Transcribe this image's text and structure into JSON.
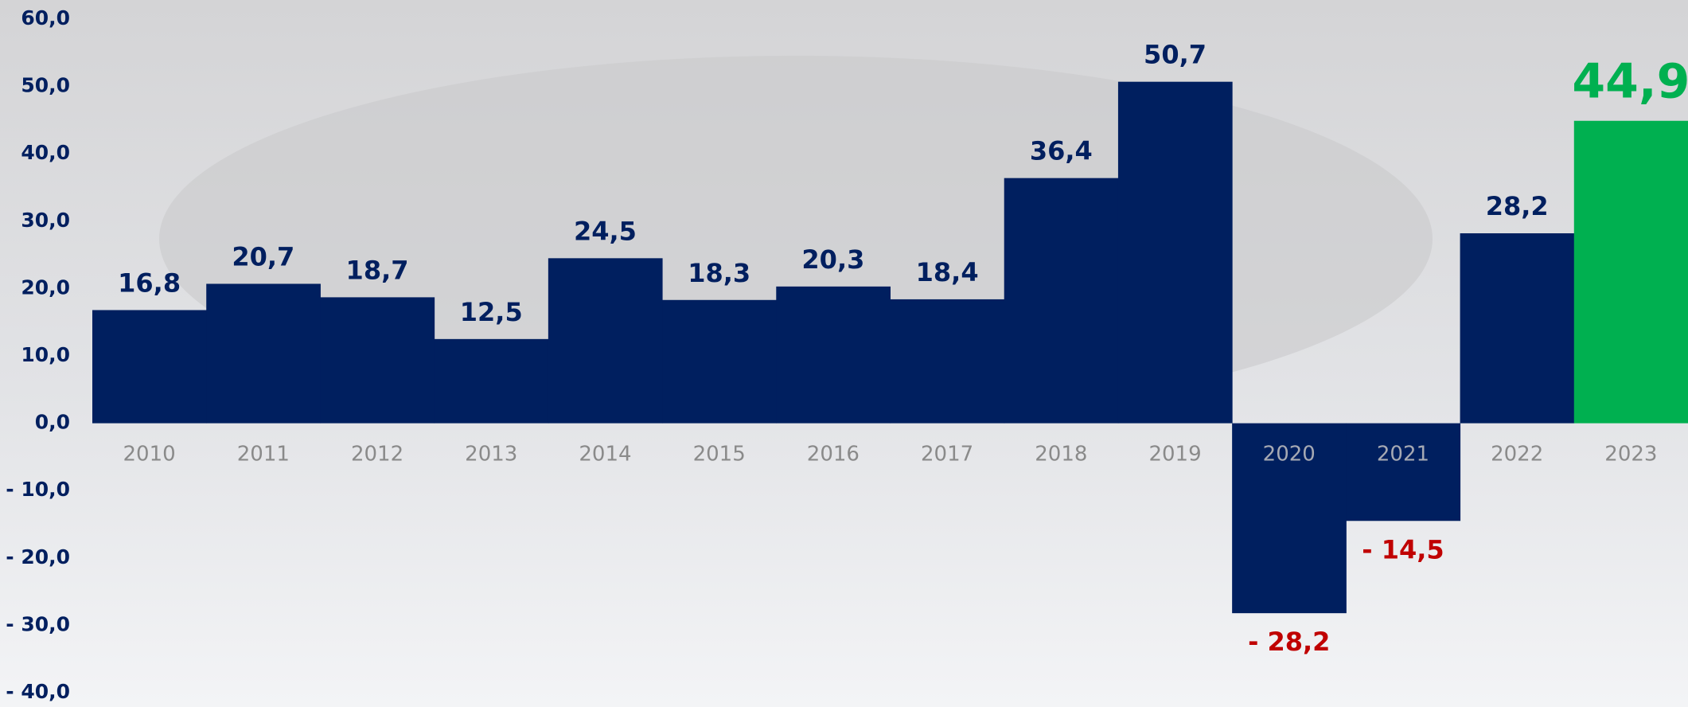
{
  "chart_data": {
    "type": "bar",
    "categories": [
      "2010",
      "2011",
      "2012",
      "2013",
      "2014",
      "2015",
      "2016",
      "2017",
      "2018",
      "2019",
      "2020",
      "2021",
      "2022",
      "2023"
    ],
    "values": [
      16.8,
      20.7,
      18.7,
      12.5,
      24.5,
      18.3,
      20.3,
      18.4,
      36.4,
      50.7,
      -28.2,
      -14.5,
      28.2,
      44.9
    ],
    "value_labels": [
      "16,8",
      "20,7",
      "18,7",
      "12,5",
      "24,5",
      "18,3",
      "20,3",
      "18,4",
      "36,4",
      "50,7",
      "- 28,2",
      "- 14,5",
      "28,2",
      "44,9"
    ],
    "colors": [
      "#001f5f",
      "#001f5f",
      "#001f5f",
      "#001f5f",
      "#001f5f",
      "#001f5f",
      "#001f5f",
      "#001f5f",
      "#001f5f",
      "#001f5f",
      "#001f5f",
      "#001f5f",
      "#001f5f",
      "#00b050"
    ],
    "value_label_colors": [
      "#001f5f",
      "#001f5f",
      "#001f5f",
      "#001f5f",
      "#001f5f",
      "#001f5f",
      "#001f5f",
      "#001f5f",
      "#001f5f",
      "#001f5f",
      "#c00000",
      "#c00000",
      "#001f5f",
      "#00b050"
    ],
    "ylim": [
      -40,
      60
    ],
    "yticks": [
      {
        "value": -40,
        "label": "- 40,0"
      },
      {
        "value": -30,
        "label": "- 30,0"
      },
      {
        "value": -20,
        "label": "- 20,0"
      },
      {
        "value": -10,
        "label": "- 10,0"
      },
      {
        "value": 0,
        "label": "0,0"
      },
      {
        "value": 10,
        "label": "10,0"
      },
      {
        "value": 20,
        "label": "20,0"
      },
      {
        "value": 30,
        "label": "30,0"
      },
      {
        "value": 40,
        "label": "40,0"
      },
      {
        "value": 50,
        "label": "50,0"
      },
      {
        "value": 60,
        "label": "60,0"
      }
    ],
    "grid": false
  }
}
